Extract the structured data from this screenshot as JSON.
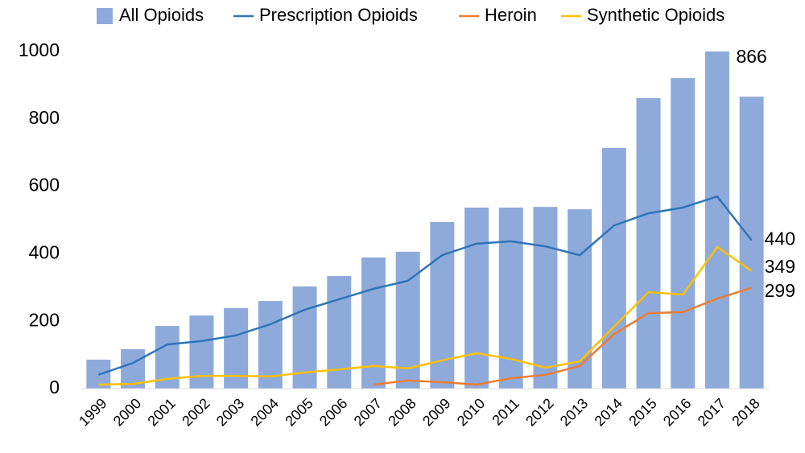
{
  "chart_data": {
    "type": "bar",
    "categories": [
      "1999",
      "2000",
      "2001",
      "2002",
      "2003",
      "2004",
      "2005",
      "2006",
      "2007",
      "2008",
      "2009",
      "2010",
      "2011",
      "2012",
      "2013",
      "2014",
      "2015",
      "2016",
      "2017",
      "2018"
    ],
    "series": [
      {
        "name": "All Opioids",
        "type": "bar",
        "color": "#8eaadb",
        "values": [
          86,
          117,
          186,
          217,
          239,
          260,
          303,
          334,
          389,
          406,
          494,
          537,
          537,
          539,
          532,
          714,
          862,
          921,
          1000,
          866
        ]
      },
      {
        "name": "Prescription Opioids",
        "type": "line",
        "color": "#2e75b6",
        "values": [
          41,
          76,
          131,
          141,
          158,
          191,
          234,
          265,
          296,
          320,
          396,
          430,
          437,
          422,
          396,
          484,
          520,
          537,
          570,
          440
        ]
      },
      {
        "name": "Heroin",
        "type": "line",
        "color": "#ed7d31",
        "values": [
          null,
          null,
          null,
          null,
          null,
          null,
          null,
          null,
          12,
          24,
          19,
          12,
          31,
          41,
          67,
          162,
          224,
          227,
          267,
          299
        ]
      },
      {
        "name": "Synthetic Opioids",
        "type": "line",
        "color": "#ffc000",
        "values": [
          12,
          14,
          29,
          38,
          38,
          36,
          48,
          57,
          67,
          60,
          84,
          105,
          88,
          62,
          81,
          184,
          286,
          279,
          420,
          349
        ]
      }
    ],
    "ylim": [
      0,
      1000
    ],
    "yticks": [
      0,
      200,
      400,
      600,
      800,
      1000
    ],
    "grid": false,
    "legend": "top"
  }
}
